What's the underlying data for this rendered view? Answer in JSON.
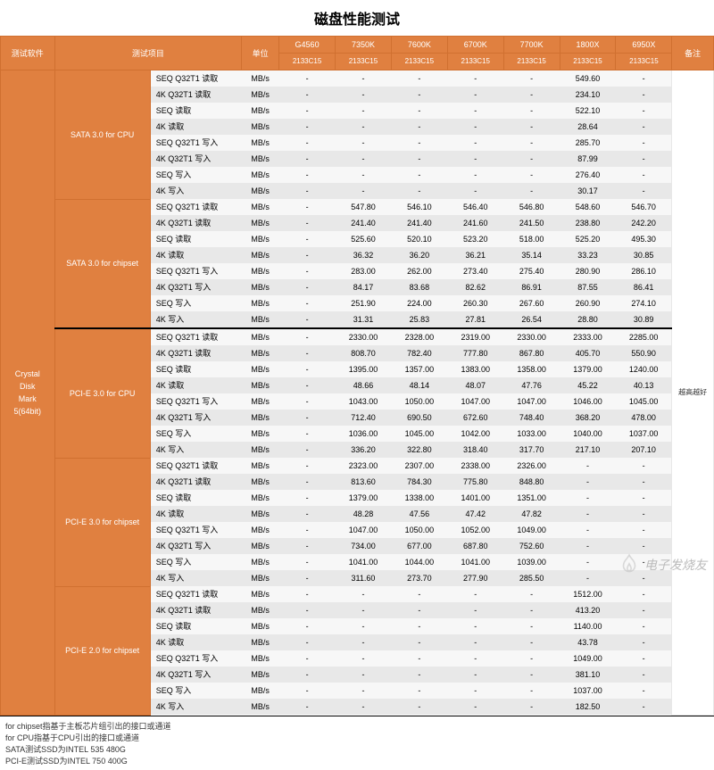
{
  "title": "磁盘性能测试",
  "headers": {
    "software": "测试软件",
    "item": "测试项目",
    "unit": "单位",
    "note": "备注",
    "cpus": [
      {
        "name": "G4560",
        "mem": "2133C15"
      },
      {
        "name": "7350K",
        "mem": "2133C15"
      },
      {
        "name": "7600K",
        "mem": "2133C15"
      },
      {
        "name": "6700K",
        "mem": "2133C15"
      },
      {
        "name": "7700K",
        "mem": "2133C15"
      },
      {
        "name": "1800X",
        "mem": "2133C15"
      },
      {
        "name": "6950X",
        "mem": "2133C15"
      }
    ]
  },
  "software": "Crystal\nDisk\nMark\n5(64bit)",
  "note": "越高越好",
  "unit": "MB/s",
  "groups": [
    {
      "name": "SATA 3.0 for CPU",
      "rows": [
        {
          "item": "SEQ Q32T1 读取",
          "v": [
            "-",
            "-",
            "-",
            "-",
            "-",
            "549.60",
            "-"
          ]
        },
        {
          "item": "4K Q32T1 读取",
          "v": [
            "-",
            "-",
            "-",
            "-",
            "-",
            "234.10",
            "-"
          ]
        },
        {
          "item": "SEQ 读取",
          "v": [
            "-",
            "-",
            "-",
            "-",
            "-",
            "522.10",
            "-"
          ]
        },
        {
          "item": "4K 读取",
          "v": [
            "-",
            "-",
            "-",
            "-",
            "-",
            "28.64",
            "-"
          ]
        },
        {
          "item": "SEQ Q32T1 写入",
          "v": [
            "-",
            "-",
            "-",
            "-",
            "-",
            "285.70",
            "-"
          ]
        },
        {
          "item": "4K Q32T1 写入",
          "v": [
            "-",
            "-",
            "-",
            "-",
            "-",
            "87.99",
            "-"
          ]
        },
        {
          "item": "SEQ 写入",
          "v": [
            "-",
            "-",
            "-",
            "-",
            "-",
            "276.40",
            "-"
          ]
        },
        {
          "item": "4K 写入",
          "v": [
            "-",
            "-",
            "-",
            "-",
            "-",
            "30.17",
            "-"
          ]
        }
      ]
    },
    {
      "name": "SATA 3.0 for chipset",
      "rows": [
        {
          "item": "SEQ Q32T1 读取",
          "v": [
            "-",
            "547.80",
            "546.10",
            "546.40",
            "546.80",
            "548.60",
            "546.70"
          ]
        },
        {
          "item": "4K Q32T1 读取",
          "v": [
            "-",
            "241.40",
            "241.40",
            "241.60",
            "241.50",
            "238.80",
            "242.20"
          ]
        },
        {
          "item": "SEQ 读取",
          "v": [
            "-",
            "525.60",
            "520.10",
            "523.20",
            "518.00",
            "525.20",
            "495.30"
          ]
        },
        {
          "item": "4K 读取",
          "v": [
            "-",
            "36.32",
            "36.20",
            "36.21",
            "35.14",
            "33.23",
            "30.85"
          ]
        },
        {
          "item": "SEQ Q32T1 写入",
          "v": [
            "-",
            "283.00",
            "262.00",
            "273.40",
            "275.40",
            "280.90",
            "286.10"
          ]
        },
        {
          "item": "4K Q32T1 写入",
          "v": [
            "-",
            "84.17",
            "83.68",
            "82.62",
            "86.91",
            "87.55",
            "86.41"
          ]
        },
        {
          "item": "SEQ 写入",
          "v": [
            "-",
            "251.90",
            "224.00",
            "260.30",
            "267.60",
            "260.90",
            "274.10"
          ]
        },
        {
          "item": "4K 写入",
          "v": [
            "-",
            "31.31",
            "25.83",
            "27.81",
            "26.54",
            "28.80",
            "30.89"
          ]
        }
      ]
    },
    {
      "name": "PCI-E 3.0 for CPU",
      "sep": true,
      "rows": [
        {
          "item": "SEQ Q32T1 读取",
          "v": [
            "-",
            "2330.00",
            "2328.00",
            "2319.00",
            "2330.00",
            "2333.00",
            "2285.00"
          ]
        },
        {
          "item": "4K Q32T1 读取",
          "v": [
            "-",
            "808.70",
            "782.40",
            "777.80",
            "867.80",
            "405.70",
            "550.90"
          ]
        },
        {
          "item": "SEQ 读取",
          "v": [
            "-",
            "1395.00",
            "1357.00",
            "1383.00",
            "1358.00",
            "1379.00",
            "1240.00"
          ]
        },
        {
          "item": "4K 读取",
          "v": [
            "-",
            "48.66",
            "48.14",
            "48.07",
            "47.76",
            "45.22",
            "40.13"
          ]
        },
        {
          "item": "SEQ Q32T1 写入",
          "v": [
            "-",
            "1043.00",
            "1050.00",
            "1047.00",
            "1047.00",
            "1046.00",
            "1045.00"
          ]
        },
        {
          "item": "4K Q32T1 写入",
          "v": [
            "-",
            "712.40",
            "690.50",
            "672.60",
            "748.40",
            "368.20",
            "478.00"
          ]
        },
        {
          "item": "SEQ 写入",
          "v": [
            "-",
            "1036.00",
            "1045.00",
            "1042.00",
            "1033.00",
            "1040.00",
            "1037.00"
          ]
        },
        {
          "item": "4K 写入",
          "v": [
            "-",
            "336.20",
            "322.80",
            "318.40",
            "317.70",
            "217.10",
            "207.10"
          ]
        }
      ]
    },
    {
      "name": "PCI-E 3.0 for chipset",
      "rows": [
        {
          "item": "SEQ Q32T1 读取",
          "v": [
            "-",
            "2323.00",
            "2307.00",
            "2338.00",
            "2326.00",
            "-",
            "-"
          ]
        },
        {
          "item": "4K Q32T1 读取",
          "v": [
            "-",
            "813.60",
            "784.30",
            "775.80",
            "848.80",
            "-",
            "-"
          ]
        },
        {
          "item": "SEQ 读取",
          "v": [
            "-",
            "1379.00",
            "1338.00",
            "1401.00",
            "1351.00",
            "-",
            "-"
          ]
        },
        {
          "item": "4K 读取",
          "v": [
            "-",
            "48.28",
            "47.56",
            "47.42",
            "47.82",
            "-",
            "-"
          ]
        },
        {
          "item": "SEQ Q32T1 写入",
          "v": [
            "-",
            "1047.00",
            "1050.00",
            "1052.00",
            "1049.00",
            "-",
            "-"
          ]
        },
        {
          "item": "4K Q32T1 写入",
          "v": [
            "-",
            "734.00",
            "677.00",
            "687.80",
            "752.60",
            "-",
            "-"
          ]
        },
        {
          "item": "SEQ 写入",
          "v": [
            "-",
            "1041.00",
            "1044.00",
            "1041.00",
            "1039.00",
            "-",
            "-"
          ]
        },
        {
          "item": "4K 写入",
          "v": [
            "-",
            "311.60",
            "273.70",
            "277.90",
            "285.50",
            "-",
            "-"
          ]
        }
      ]
    },
    {
      "name": "PCI-E 2.0 for chipset",
      "rows": [
        {
          "item": "SEQ Q32T1 读取",
          "v": [
            "-",
            "-",
            "-",
            "-",
            "-",
            "1512.00",
            "-"
          ]
        },
        {
          "item": "4K Q32T1 读取",
          "v": [
            "-",
            "-",
            "-",
            "-",
            "-",
            "413.20",
            "-"
          ]
        },
        {
          "item": "SEQ 读取",
          "v": [
            "-",
            "-",
            "-",
            "-",
            "-",
            "1140.00",
            "-"
          ]
        },
        {
          "item": "4K 读取",
          "v": [
            "-",
            "-",
            "-",
            "-",
            "-",
            "43.78",
            "-"
          ]
        },
        {
          "item": "SEQ Q32T1 写入",
          "v": [
            "-",
            "-",
            "-",
            "-",
            "-",
            "1049.00",
            "-"
          ]
        },
        {
          "item": "4K Q32T1 写入",
          "v": [
            "-",
            "-",
            "-",
            "-",
            "-",
            "381.10",
            "-"
          ]
        },
        {
          "item": "SEQ 写入",
          "v": [
            "-",
            "-",
            "-",
            "-",
            "-",
            "1037.00",
            "-"
          ]
        },
        {
          "item": "4K 写入",
          "v": [
            "-",
            "-",
            "-",
            "-",
            "-",
            "182.50",
            "-"
          ]
        }
      ]
    }
  ],
  "footer": [
    "for chipset指基于主板芯片组引出的接口或通道",
    "for CPU指基于CPU引出的接口或通道",
    "SATA测试SSD为INTEL 535 480G",
    "PCI-E测试SSD为INTEL 750 400G"
  ],
  "watermark": "电子发烧友",
  "colors": {
    "header_bg": "#e08040",
    "row_even": "#f7f7f7",
    "row_odd": "#e8e8e8"
  }
}
